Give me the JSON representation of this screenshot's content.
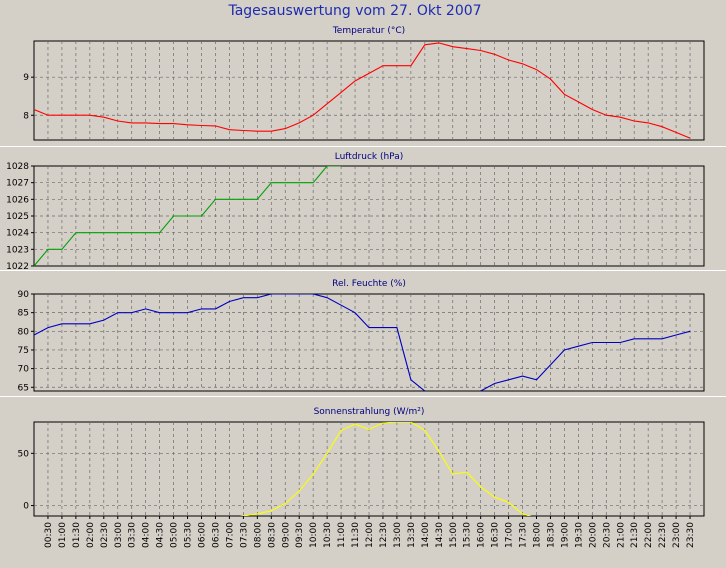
{
  "page_title": "Tagesauswertung vom 27. Okt 2007",
  "time_labels": [
    "00:30",
    "01:00",
    "01:30",
    "02:00",
    "02:30",
    "03:00",
    "03:30",
    "04:00",
    "04:30",
    "05:00",
    "05:30",
    "06:00",
    "06:30",
    "07:00",
    "07:30",
    "08:00",
    "08:30",
    "09:00",
    "09:30",
    "10:00",
    "10:30",
    "11:00",
    "11:30",
    "12:00",
    "12:30",
    "13:00",
    "13:30",
    "14:00",
    "14:30",
    "15:00",
    "15:30",
    "16:00",
    "16:30",
    "17:00",
    "17:30",
    "18:00",
    "18:30",
    "19:00",
    "19:30",
    "20:00",
    "20:30",
    "21:00",
    "21:30",
    "22:00",
    "22:30",
    "23:00",
    "23:30"
  ],
  "chart_data": [
    {
      "type": "line",
      "title": "Temperatur (°C)",
      "color": "#ff0000",
      "ylim": [
        7.35,
        9.95
      ],
      "yticks": [
        8,
        9
      ],
      "grid": true,
      "x": [
        "00:00",
        "00:30",
        "01:00",
        "01:30",
        "02:00",
        "02:30",
        "03:00",
        "03:30",
        "04:00",
        "04:30",
        "05:00",
        "05:30",
        "06:00",
        "06:30",
        "07:00",
        "07:30",
        "08:00",
        "08:30",
        "09:00",
        "09:30",
        "10:00",
        "10:30",
        "11:00",
        "11:30",
        "12:00",
        "12:30",
        "13:00",
        "13:30",
        "14:00",
        "14:30",
        "15:00",
        "15:30",
        "16:00",
        "16:30",
        "17:00",
        "17:30",
        "18:00",
        "18:30",
        "19:00",
        "19:30",
        "20:00",
        "20:30",
        "21:00",
        "21:30",
        "22:00",
        "22:30",
        "23:00",
        "23:30"
      ],
      "values": [
        8.15,
        8.0,
        8.0,
        8.0,
        8.0,
        7.95,
        7.85,
        7.8,
        7.8,
        7.78,
        7.78,
        7.75,
        7.73,
        7.72,
        7.62,
        7.6,
        7.58,
        7.58,
        7.65,
        7.8,
        8.0,
        8.3,
        8.6,
        8.9,
        9.1,
        9.3,
        9.3,
        9.3,
        9.85,
        9.9,
        9.8,
        9.75,
        9.7,
        9.6,
        9.45,
        9.35,
        9.2,
        8.95,
        8.55,
        8.35,
        8.15,
        8.0,
        7.95,
        7.85,
        7.8,
        7.7,
        7.55,
        7.4
      ]
    },
    {
      "type": "line",
      "title": "Luftdruck (hPa)",
      "color": "#00a000",
      "ylim": [
        1022,
        1028
      ],
      "yticks": [
        1022,
        1023,
        1024,
        1025,
        1026,
        1027,
        1028
      ],
      "grid": true,
      "step": true,
      "x": [
        "00:00",
        "00:30",
        "01:00",
        "01:30",
        "02:00",
        "02:30",
        "03:00",
        "03:30",
        "04:00",
        "04:30",
        "05:00",
        "05:30",
        "06:00",
        "06:30",
        "07:00",
        "07:30",
        "08:00",
        "08:30",
        "09:00",
        "09:30",
        "10:00",
        "10:30",
        "11:00"
      ],
      "values": [
        1022,
        1023,
        1023,
        1024,
        1024,
        1024,
        1024,
        1024,
        1024,
        1024,
        1025,
        1025,
        1025,
        1026,
        1026,
        1026,
        1026,
        1027,
        1027,
        1027,
        1027,
        1028,
        1028
      ]
    },
    {
      "type": "line",
      "title": "Rel. Feuchte (%)",
      "color": "#0000c0",
      "ylim": [
        64,
        90
      ],
      "yticks": [
        65,
        70,
        75,
        80,
        85,
        90
      ],
      "grid": true,
      "x": [
        "00:00",
        "00:30",
        "01:00",
        "01:30",
        "02:00",
        "02:30",
        "03:00",
        "03:30",
        "04:00",
        "04:30",
        "05:00",
        "05:30",
        "06:00",
        "06:30",
        "07:00",
        "07:30",
        "08:00",
        "08:30",
        "09:00",
        "09:30",
        "10:00",
        "10:30",
        "11:00",
        "11:30",
        "12:00",
        "12:30",
        "13:00",
        "13:30",
        "14:00",
        "14:30",
        "15:00",
        "15:30",
        "16:00",
        "16:30",
        "17:00",
        "17:30",
        "18:00",
        "18:30",
        "19:00",
        "19:30",
        "20:00",
        "20:30",
        "21:00",
        "21:30",
        "22:00",
        "22:30",
        "23:00",
        "23:30"
      ],
      "values": [
        79,
        81,
        82,
        82,
        82,
        83,
        85,
        85,
        86,
        85,
        85,
        85,
        86,
        86,
        88,
        89,
        89,
        90,
        90,
        90,
        90,
        89,
        87,
        85,
        81,
        81,
        81,
        67,
        64,
        62,
        62,
        63,
        64,
        66,
        67,
        68,
        67,
        71,
        75,
        76,
        77,
        77,
        77,
        78,
        78,
        78,
        79,
        80
      ]
    },
    {
      "type": "line",
      "title": "Sonnenstrahlung (W/m²)",
      "color": "#ffff00",
      "ylim": [
        -10,
        80
      ],
      "yticks": [
        0,
        50
      ],
      "grid": true,
      "x": [
        "07:00",
        "07:30",
        "08:00",
        "08:30",
        "09:00",
        "09:30",
        "10:00",
        "10:30",
        "11:00",
        "11:30",
        "12:00",
        "12:30",
        "13:00",
        "13:30",
        "14:00",
        "14:30",
        "15:00",
        "15:30",
        "16:00",
        "16:30",
        "17:00",
        "17:30",
        "18:00"
      ],
      "values": [
        -12,
        -10,
        -8,
        -5,
        2,
        14,
        30,
        50,
        72,
        78,
        73,
        79,
        80,
        80,
        72,
        52,
        30,
        32,
        18,
        8,
        3,
        -8,
        -12
      ]
    }
  ]
}
